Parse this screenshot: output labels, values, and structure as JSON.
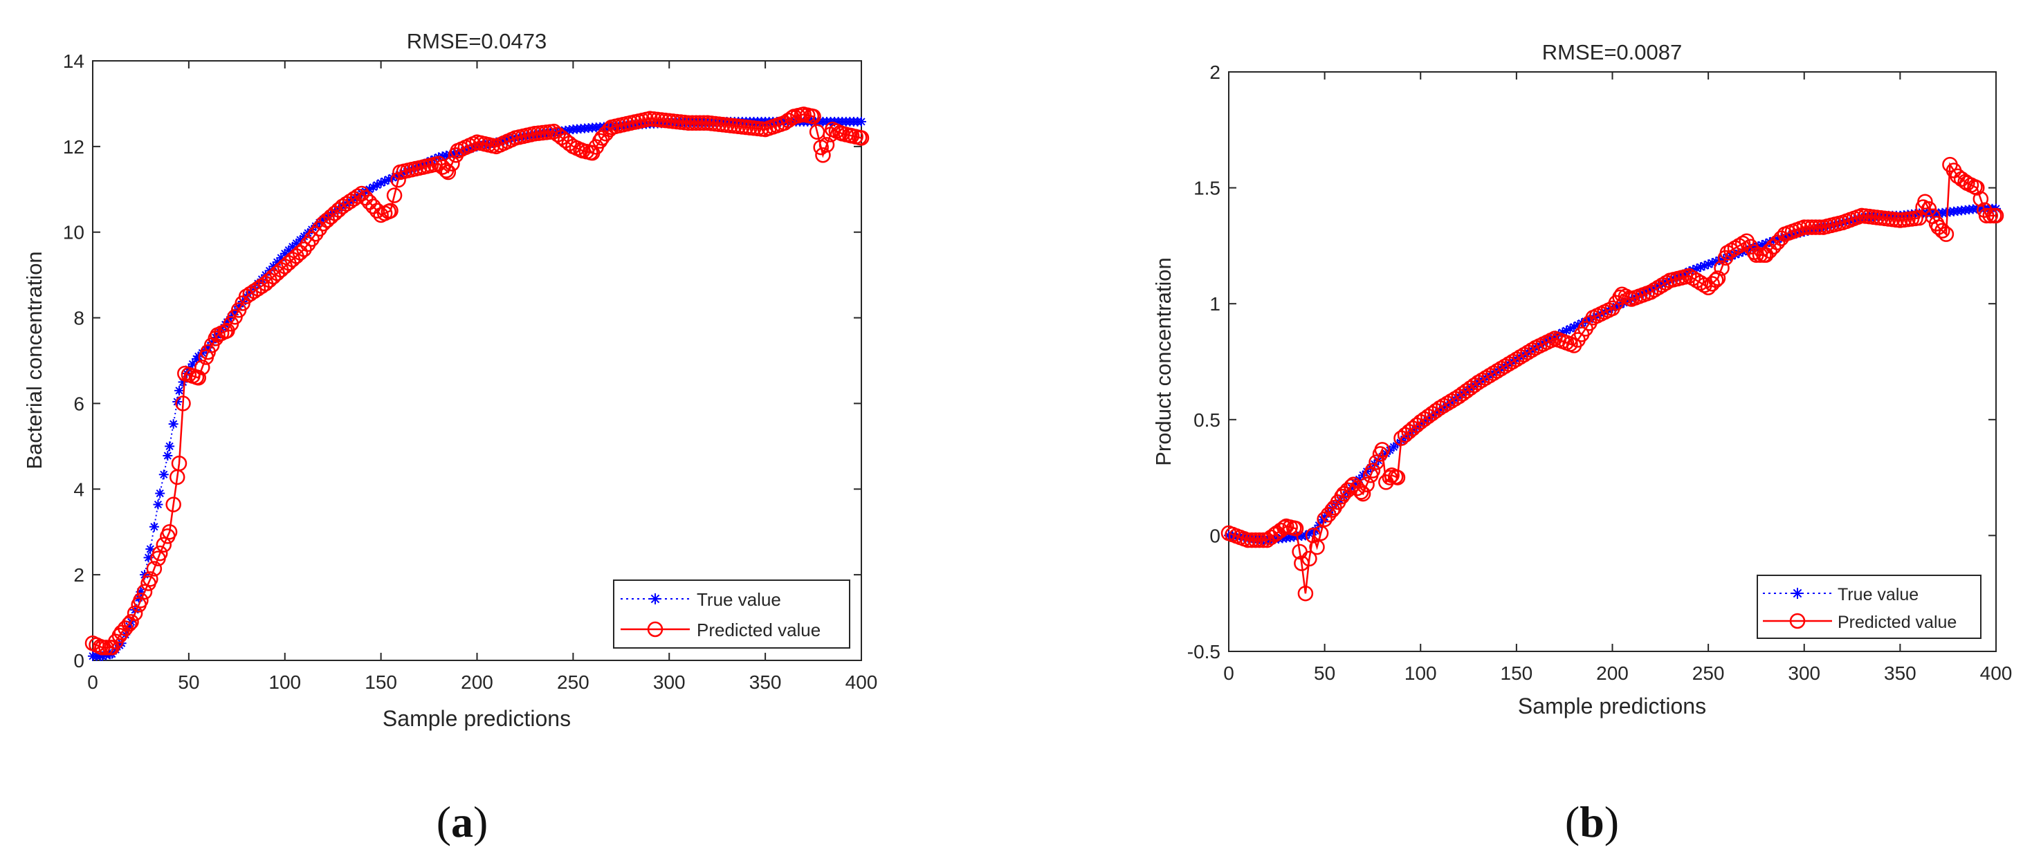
{
  "figure": {
    "panels": [
      {
        "caption_open": "(",
        "caption_letter": "a",
        "caption_close": ")"
      },
      {
        "caption_open": "(",
        "caption_letter": "b",
        "caption_close": ")"
      }
    ]
  },
  "chart_data": [
    {
      "type": "line",
      "title": "RMSE=0.0473",
      "xlabel": "Sample predictions",
      "ylabel": "Bacterial concentration",
      "xlim": [
        0,
        400
      ],
      "ylim": [
        0,
        14
      ],
      "xticks": [
        0,
        50,
        100,
        150,
        200,
        250,
        300,
        350,
        400
      ],
      "yticks": [
        0,
        2,
        4,
        6,
        8,
        10,
        12,
        14
      ],
      "xtick_labels": [
        "0",
        "50",
        "100",
        "150",
        "200",
        "250",
        "300",
        "350",
        "400"
      ],
      "ytick_labels": [
        "0",
        "2",
        "4",
        "6",
        "8",
        "10",
        "12",
        "14"
      ],
      "legend": {
        "position": "bottom-right"
      },
      "series": [
        {
          "name": "True value",
          "color": "#0000ff",
          "marker": "asterisk",
          "line": "dotted",
          "x": [
            0,
            5,
            10,
            15,
            20,
            25,
            30,
            35,
            40,
            45,
            50,
            55,
            60,
            65,
            70,
            80,
            90,
            100,
            110,
            120,
            130,
            140,
            150,
            160,
            170,
            180,
            190,
            200,
            210,
            220,
            230,
            240,
            250,
            260,
            270,
            280,
            290,
            300,
            310,
            320,
            330,
            340,
            350,
            360,
            370,
            380,
            390,
            400
          ],
          "y": [
            0.1,
            0.1,
            0.15,
            0.4,
            0.9,
            1.6,
            2.6,
            3.9,
            5.0,
            6.3,
            6.8,
            7.1,
            7.3,
            7.6,
            7.9,
            8.5,
            9.0,
            9.5,
            9.9,
            10.3,
            10.6,
            10.9,
            11.15,
            11.35,
            11.55,
            11.75,
            11.85,
            12.0,
            12.1,
            12.2,
            12.27,
            12.33,
            12.4,
            12.44,
            12.47,
            12.5,
            12.53,
            12.55,
            12.57,
            12.57,
            12.58,
            12.58,
            12.58,
            12.58,
            12.58,
            12.58,
            12.58,
            12.58
          ]
        },
        {
          "name": "Predicted value",
          "color": "#ff0000",
          "marker": "circle",
          "line": "solid",
          "x": [
            0,
            5,
            10,
            15,
            20,
            25,
            30,
            35,
            40,
            45,
            48,
            55,
            60,
            65,
            70,
            80,
            90,
            100,
            110,
            120,
            130,
            140,
            150,
            155,
            160,
            170,
            180,
            185,
            190,
            200,
            210,
            220,
            230,
            240,
            250,
            255,
            260,
            265,
            270,
            280,
            290,
            300,
            310,
            320,
            330,
            340,
            350,
            360,
            365,
            370,
            375,
            380,
            385,
            390,
            395,
            400
          ],
          "y": [
            0.4,
            0.3,
            0.3,
            0.65,
            0.9,
            1.4,
            1.9,
            2.5,
            3.0,
            4.6,
            6.7,
            6.6,
            7.2,
            7.6,
            7.7,
            8.5,
            8.8,
            9.2,
            9.6,
            10.2,
            10.6,
            10.9,
            10.4,
            10.5,
            11.4,
            11.5,
            11.6,
            11.4,
            11.9,
            12.1,
            12.0,
            12.2,
            12.3,
            12.35,
            12.0,
            11.9,
            11.85,
            12.2,
            12.45,
            12.55,
            12.65,
            12.6,
            12.55,
            12.55,
            12.5,
            12.45,
            12.4,
            12.55,
            12.7,
            12.75,
            12.7,
            11.8,
            12.4,
            12.3,
            12.25,
            12.2
          ]
        }
      ]
    },
    {
      "type": "line",
      "title": "RMSE=0.0087",
      "xlabel": "Sample predictions",
      "ylabel": "Product concentration",
      "xlim": [
        0,
        400
      ],
      "ylim": [
        -0.5,
        2
      ],
      "xticks": [
        0,
        50,
        100,
        150,
        200,
        250,
        300,
        350,
        400
      ],
      "yticks": [
        -0.5,
        0,
        0.5,
        1,
        1.5,
        2
      ],
      "xtick_labels": [
        "0",
        "50",
        "100",
        "150",
        "200",
        "250",
        "300",
        "350",
        "400"
      ],
      "ytick_labels": [
        "-0.5",
        "0",
        "0.5",
        "1",
        "1.5",
        "2"
      ],
      "legend": {
        "position": "bottom-right"
      },
      "series": [
        {
          "name": "True value",
          "color": "#0000ff",
          "marker": "asterisk",
          "line": "dotted",
          "x": [
            0,
            10,
            20,
            30,
            40,
            45,
            50,
            60,
            70,
            80,
            90,
            100,
            110,
            120,
            130,
            140,
            150,
            160,
            170,
            180,
            190,
            200,
            210,
            220,
            230,
            240,
            250,
            260,
            270,
            280,
            290,
            300,
            310,
            320,
            330,
            340,
            350,
            360,
            370,
            380,
            390,
            400
          ],
          "y": [
            0.0,
            -0.01,
            -0.02,
            -0.01,
            0.0,
            0.02,
            0.08,
            0.17,
            0.26,
            0.34,
            0.41,
            0.48,
            0.54,
            0.6,
            0.66,
            0.71,
            0.76,
            0.81,
            0.86,
            0.9,
            0.94,
            0.98,
            1.02,
            1.06,
            1.1,
            1.14,
            1.17,
            1.2,
            1.23,
            1.26,
            1.29,
            1.31,
            1.33,
            1.35,
            1.37,
            1.38,
            1.38,
            1.39,
            1.39,
            1.4,
            1.41,
            1.41
          ]
        },
        {
          "name": "Predicted value",
          "color": "#ff0000",
          "marker": "circle",
          "line": "solid",
          "x": [
            0,
            10,
            20,
            25,
            30,
            35,
            38,
            40,
            42,
            44,
            46,
            50,
            55,
            60,
            65,
            70,
            75,
            80,
            82,
            85,
            88,
            90,
            100,
            110,
            120,
            130,
            140,
            150,
            160,
            170,
            180,
            190,
            200,
            205,
            210,
            220,
            230,
            240,
            250,
            255,
            260,
            270,
            275,
            280,
            290,
            300,
            310,
            320,
            330,
            340,
            350,
            360,
            363,
            370,
            374,
            376,
            380,
            385,
            390,
            395,
            400
          ],
          "y": [
            0.01,
            -0.02,
            -0.02,
            0.01,
            0.04,
            0.03,
            -0.12,
            -0.25,
            -0.1,
            0.0,
            -0.05,
            0.07,
            0.12,
            0.18,
            0.22,
            0.18,
            0.28,
            0.37,
            0.23,
            0.26,
            0.25,
            0.42,
            0.49,
            0.55,
            0.6,
            0.66,
            0.71,
            0.76,
            0.81,
            0.85,
            0.82,
            0.94,
            0.98,
            1.04,
            1.02,
            1.05,
            1.1,
            1.12,
            1.07,
            1.11,
            1.22,
            1.27,
            1.21,
            1.21,
            1.3,
            1.33,
            1.33,
            1.35,
            1.38,
            1.37,
            1.36,
            1.37,
            1.44,
            1.33,
            1.3,
            1.6,
            1.55,
            1.52,
            1.5,
            1.38,
            1.38
          ]
        }
      ]
    }
  ]
}
